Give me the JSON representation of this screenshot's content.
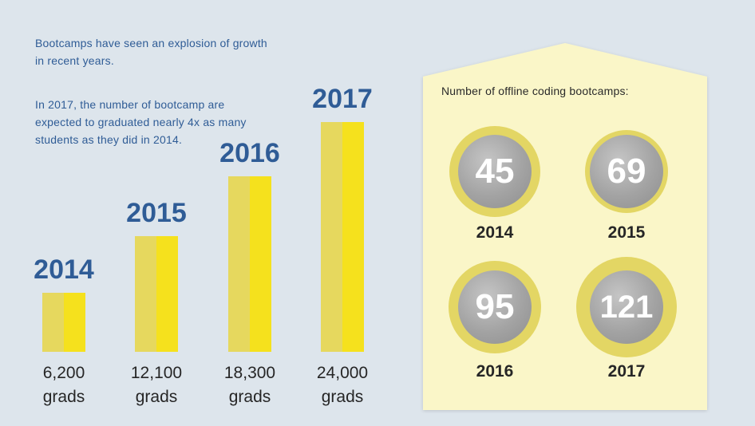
{
  "intro": {
    "line1": "Bootcamps have seen an explosion of growth in recent years.",
    "line2": "In 2017, the number of bootcamp are expected to graduated nearly 4x as many students as they did in 2014."
  },
  "colors": {
    "background": "#dde5ec",
    "title_blue": "#2f5c96",
    "bar_light": "#e6d85e",
    "bar_bright": "#f5e11d",
    "panel": "#faf6c8",
    "ring": "#e3d664",
    "disc_grey": "#a3a3a3"
  },
  "chart_data": [
    {
      "type": "bar",
      "categories": [
        "2014",
        "2015",
        "2016",
        "2017"
      ],
      "values": [
        6200,
        12100,
        18300,
        24000
      ],
      "value_labels": [
        "6,200",
        "12,100",
        "18,300",
        "24,000"
      ],
      "unit_label": "grads",
      "title": "",
      "xlabel": "",
      "ylabel": ""
    },
    {
      "type": "bubble",
      "title": "Number of offline coding bootcamps:",
      "categories": [
        "2014",
        "2015",
        "2016",
        "2017"
      ],
      "values": [
        45,
        69,
        95,
        121
      ]
    }
  ]
}
